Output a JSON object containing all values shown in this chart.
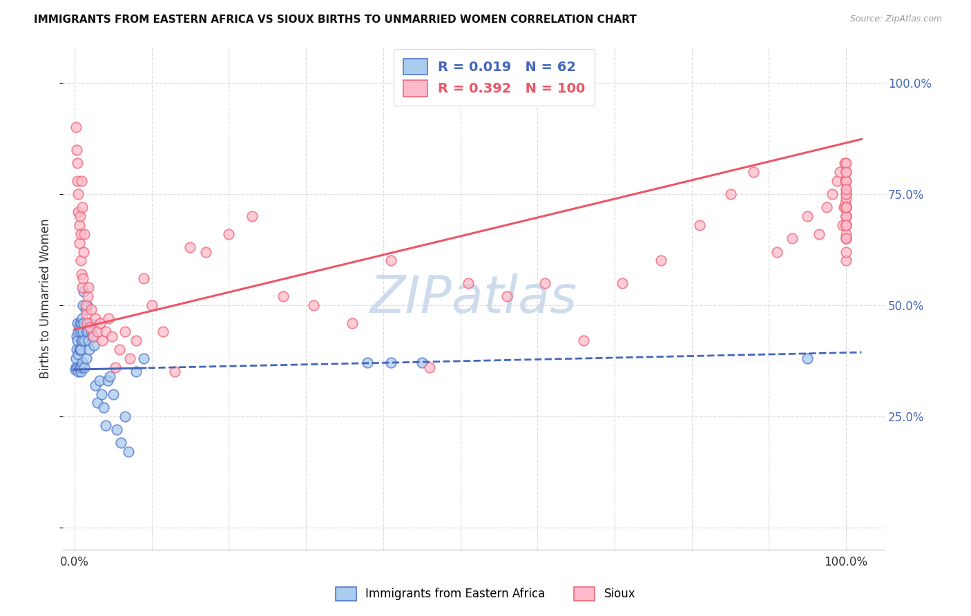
{
  "title": "IMMIGRANTS FROM EASTERN AFRICA VS SIOUX BIRTHS TO UNMARRIED WOMEN CORRELATION CHART",
  "source": "Source: ZipAtlas.com",
  "ylabel": "Births to Unmarried Women",
  "legend_blue_R": "0.019",
  "legend_blue_N": "62",
  "legend_pink_R": "0.392",
  "legend_pink_N": "100",
  "legend_label_blue": "Immigrants from Eastern Africa",
  "legend_label_pink": "Sioux",
  "blue_color": "#AACCEE",
  "pink_color": "#FFBBCC",
  "blue_edge_color": "#5577CC",
  "pink_edge_color": "#EE6677",
  "blue_line_color": "#4466BB",
  "pink_line_color": "#EE5566",
  "watermark_text": "ZIPatlas",
  "watermark_color": "#C8D8EC",
  "blue_intercept": 0.355,
  "blue_slope": 0.038,
  "pink_intercept": 0.445,
  "pink_slope": 0.42,
  "blue_x": [
    0.001,
    0.002,
    0.002,
    0.003,
    0.003,
    0.004,
    0.004,
    0.004,
    0.005,
    0.005,
    0.005,
    0.006,
    0.006,
    0.006,
    0.007,
    0.007,
    0.007,
    0.008,
    0.008,
    0.008,
    0.009,
    0.009,
    0.009,
    0.01,
    0.01,
    0.01,
    0.011,
    0.011,
    0.012,
    0.012,
    0.013,
    0.013,
    0.014,
    0.015,
    0.015,
    0.016,
    0.017,
    0.018,
    0.019,
    0.02,
    0.022,
    0.023,
    0.025,
    0.027,
    0.03,
    0.032,
    0.035,
    0.038,
    0.04,
    0.043,
    0.046,
    0.05,
    0.055,
    0.06,
    0.065,
    0.07,
    0.08,
    0.09,
    0.38,
    0.41,
    0.45,
    0.95
  ],
  "blue_y": [
    0.355,
    0.36,
    0.38,
    0.4,
    0.43,
    0.36,
    0.42,
    0.46,
    0.35,
    0.39,
    0.44,
    0.36,
    0.4,
    0.45,
    0.36,
    0.4,
    0.46,
    0.35,
    0.4,
    0.44,
    0.36,
    0.42,
    0.46,
    0.37,
    0.42,
    0.47,
    0.5,
    0.44,
    0.53,
    0.46,
    0.36,
    0.42,
    0.49,
    0.38,
    0.44,
    0.5,
    0.44,
    0.42,
    0.4,
    0.46,
    0.44,
    0.43,
    0.41,
    0.32,
    0.28,
    0.33,
    0.3,
    0.27,
    0.23,
    0.33,
    0.34,
    0.3,
    0.22,
    0.19,
    0.25,
    0.17,
    0.35,
    0.38,
    0.37,
    0.37,
    0.37,
    0.38
  ],
  "pink_x": [
    0.002,
    0.003,
    0.004,
    0.004,
    0.005,
    0.005,
    0.006,
    0.006,
    0.007,
    0.008,
    0.008,
    0.009,
    0.009,
    0.01,
    0.01,
    0.011,
    0.012,
    0.013,
    0.014,
    0.015,
    0.016,
    0.017,
    0.018,
    0.02,
    0.022,
    0.024,
    0.027,
    0.03,
    0.033,
    0.036,
    0.04,
    0.044,
    0.048,
    0.053,
    0.058,
    0.065,
    0.072,
    0.08,
    0.09,
    0.1,
    0.115,
    0.13,
    0.15,
    0.17,
    0.2,
    0.23,
    0.27,
    0.31,
    0.36,
    0.41,
    0.46,
    0.51,
    0.56,
    0.61,
    0.66,
    0.71,
    0.76,
    0.81,
    0.85,
    0.88,
    0.91,
    0.93,
    0.95,
    0.965,
    0.975,
    0.982,
    0.988,
    0.992,
    0.995,
    0.997,
    0.998,
    0.999,
    0.999,
    1.0,
    1.0,
    1.0,
    1.0,
    1.0,
    1.0,
    1.0,
    1.0,
    1.0,
    1.0,
    1.0,
    1.0,
    1.0,
    1.0,
    1.0,
    1.0,
    1.0,
    1.0,
    1.0,
    1.0,
    1.0,
    1.0,
    1.0,
    1.0,
    1.0,
    1.0,
    1.0
  ],
  "pink_y": [
    0.9,
    0.85,
    0.82,
    0.78,
    0.75,
    0.71,
    0.68,
    0.64,
    0.7,
    0.66,
    0.6,
    0.57,
    0.78,
    0.54,
    0.72,
    0.56,
    0.62,
    0.66,
    0.5,
    0.48,
    0.46,
    0.52,
    0.54,
    0.45,
    0.49,
    0.43,
    0.47,
    0.44,
    0.46,
    0.42,
    0.44,
    0.47,
    0.43,
    0.36,
    0.4,
    0.44,
    0.38,
    0.42,
    0.56,
    0.5,
    0.44,
    0.35,
    0.63,
    0.62,
    0.66,
    0.7,
    0.52,
    0.5,
    0.46,
    0.6,
    0.36,
    0.55,
    0.52,
    0.55,
    0.42,
    0.55,
    0.6,
    0.68,
    0.75,
    0.8,
    0.62,
    0.65,
    0.7,
    0.66,
    0.72,
    0.75,
    0.78,
    0.8,
    0.68,
    0.72,
    0.82,
    0.78,
    0.73,
    0.76,
    0.7,
    0.8,
    0.65,
    0.72,
    0.75,
    0.68,
    0.6,
    0.78,
    0.82,
    0.65,
    0.7,
    0.74,
    0.68,
    0.62,
    0.66,
    0.7,
    0.75,
    0.72,
    0.68,
    0.78,
    0.8,
    0.72,
    0.65,
    0.68,
    0.72,
    0.76
  ]
}
